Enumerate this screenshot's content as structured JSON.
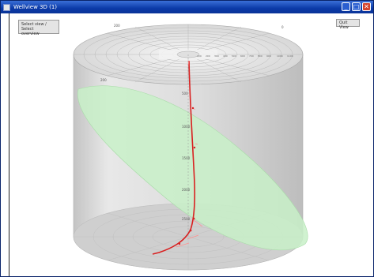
{
  "window": {
    "title": "Wellview 3D (1)",
    "minimize_glyph": "_",
    "maximize_glyph": "□",
    "close_glyph": "✕"
  },
  "toolbar": {
    "view_button_line1": "Select view / Select",
    "view_button_line2": "overview",
    "right_button_label": "Quit View"
  },
  "scene": {
    "top_label_left": "200",
    "top_label_right": "0",
    "side_label": "200",
    "depth_labels": [
      "500",
      "1000",
      "1500",
      "2000",
      "2500"
    ],
    "radial_labels": [
      "100",
      "200",
      "300",
      "400",
      "500",
      "600",
      "700",
      "800",
      "900",
      "1000",
      "1100"
    ]
  },
  "colors": {
    "titlebar": "#0b3aa8",
    "plane_fill": "#c8f0c8",
    "well_path": "#d92020",
    "cylinder": "#d6d6d6"
  },
  "icons": {
    "app": "app-window-icon",
    "minimize": "minimize-icon",
    "maximize": "maximize-icon",
    "close": "close-icon"
  }
}
